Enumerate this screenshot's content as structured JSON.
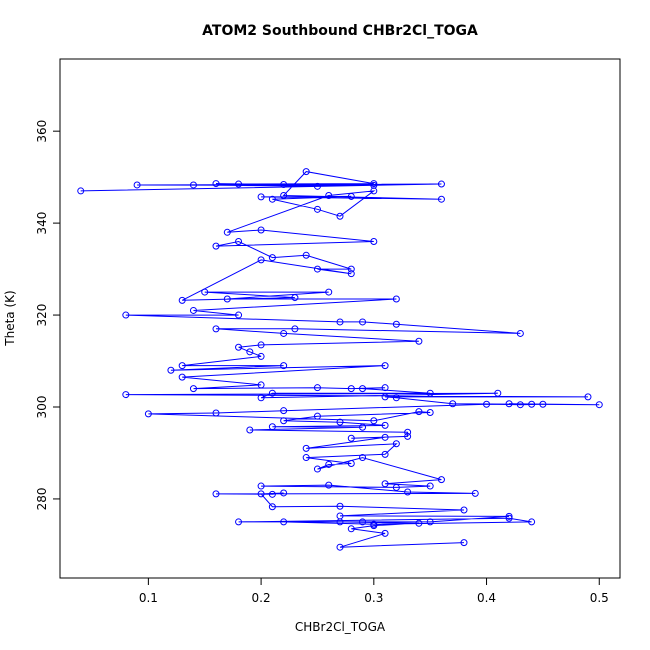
{
  "chart_data": {
    "type": "scatter",
    "title": "ATOM2 Southbound CHBr2Cl_TOGA",
    "x_label": "CHBr2Cl_TOGA",
    "y_label": "Theta (K)",
    "color": "#0000ff",
    "xlim": [
      0.0216,
      0.5184
    ],
    "ylim": [
      262.8,
      375.7
    ],
    "xticks": [
      0.1,
      0.2,
      0.3,
      0.4,
      0.5
    ],
    "yticks": [
      280,
      300,
      320,
      340,
      360
    ],
    "x": [
      0.04,
      0.36,
      0.09,
      0.3,
      0.14,
      0.25,
      0.16,
      0.22,
      0.18,
      0.3,
      0.24,
      0.22,
      0.36,
      0.2,
      0.28,
      0.21,
      0.25,
      0.27,
      0.3,
      0.26,
      0.17,
      0.2,
      0.3,
      0.16,
      0.18,
      0.21,
      0.24,
      0.28,
      0.25,
      0.28,
      0.2,
      0.13,
      0.23,
      0.15,
      0.26,
      0.17,
      0.32,
      0.14,
      0.18,
      0.08,
      0.27,
      0.29,
      0.32,
      0.43,
      0.23,
      0.16,
      0.22,
      0.34,
      0.2,
      0.18,
      0.19,
      0.2,
      0.13,
      0.22,
      0.12,
      0.31,
      0.13,
      0.2,
      0.14,
      0.25,
      0.28,
      0.31,
      0.29,
      0.35,
      0.21,
      0.2,
      0.41,
      0.08,
      0.49,
      0.31,
      0.32,
      0.37,
      0.5,
      0.42,
      0.44,
      0.45,
      0.43,
      0.4,
      0.22,
      0.16,
      0.1,
      0.3,
      0.34,
      0.35,
      0.25,
      0.22,
      0.27,
      0.31,
      0.21,
      0.29,
      0.19,
      0.33,
      0.33,
      0.28,
      0.31,
      0.24,
      0.32,
      0.31,
      0.24,
      0.28,
      0.26,
      0.25,
      0.29,
      0.36,
      0.31,
      0.35,
      0.32,
      0.2,
      0.26,
      0.33,
      0.39,
      0.16,
      0.21,
      0.22,
      0.2,
      0.21,
      0.27,
      0.38,
      0.27,
      0.42,
      0.35,
      0.18,
      0.42,
      0.44,
      0.3,
      0.22,
      0.29,
      0.27,
      0.34,
      0.3,
      0.28,
      0.31,
      0.27,
      0.38
    ],
    "values": [
      347,
      348.5,
      348.3,
      348.2,
      348.3,
      348,
      348.6,
      348.4,
      348.5,
      348.6,
      351.2,
      346,
      345.2,
      345.7,
      345.8,
      345.2,
      343,
      341.5,
      347,
      346,
      338,
      338.5,
      336,
      335,
      336,
      332.5,
      333,
      330,
      330,
      329,
      332,
      323.2,
      323.8,
      325,
      325,
      323.5,
      323.5,
      321,
      320,
      320,
      318.5,
      318.5,
      318,
      316,
      317,
      317,
      316,
      314.3,
      313.5,
      313,
      312,
      311,
      309,
      309,
      308,
      309,
      306.5,
      304.8,
      304,
      304.2,
      304,
      304.2,
      304,
      303,
      303,
      302,
      303,
      302.7,
      302.2,
      302.2,
      302,
      300.7,
      300.5,
      300.7,
      300.6,
      300.6,
      300.5,
      300.6,
      299.2,
      298.7,
      298.5,
      297,
      299,
      298.8,
      298,
      297,
      296.7,
      296,
      295.7,
      295.6,
      295,
      294.5,
      293.6,
      293.2,
      293.4,
      291,
      292,
      289.7,
      289,
      287.7,
      287.5,
      286.5,
      289,
      284.2,
      283.3,
      282.8,
      282.5,
      282.8,
      283,
      281.5,
      281.2,
      281.1,
      281,
      281.3,
      281.1,
      278.3,
      278.4,
      277.6,
      276.3,
      276.2,
      275,
      275,
      275.8,
      275,
      274.5,
      275,
      275,
      275,
      274.7,
      274.2,
      273.5,
      272.5,
      269.5,
      270.5
    ]
  }
}
